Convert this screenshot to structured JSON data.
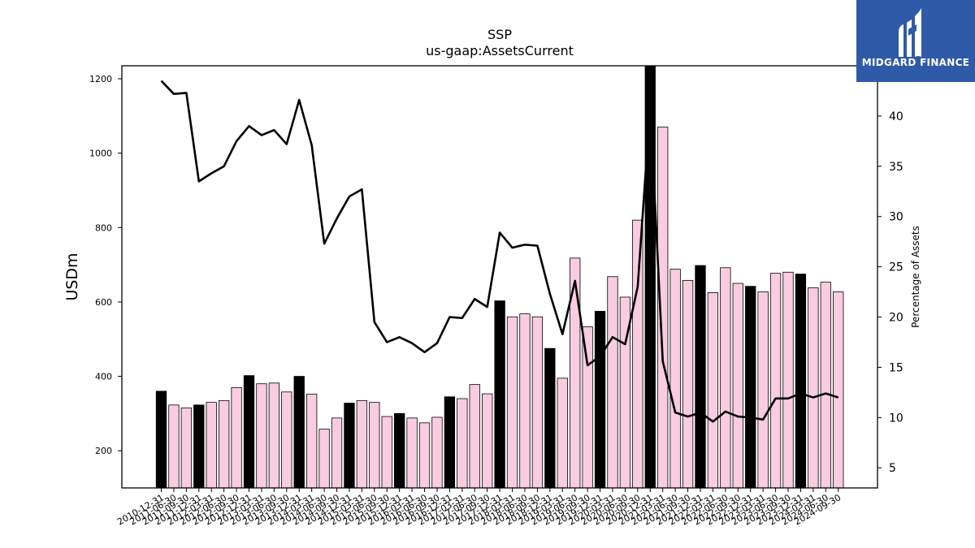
{
  "logo": {
    "text": "MIDGARD FINANCE",
    "color": "#2f5aa8"
  },
  "chart_data": {
    "type": "bar",
    "title": "SSP",
    "subtitle": "us-gaap:AssetsCurrent",
    "ylabel": "USDm",
    "y2label": "Percentage of Assets",
    "ylim": [
      100,
      1235
    ],
    "y2lim": [
      3,
      45
    ],
    "yticks": [
      200,
      400,
      600,
      800,
      1000,
      1200
    ],
    "y2ticks": [
      5,
      10,
      15,
      20,
      25,
      30,
      35,
      40
    ],
    "bar_colors": {
      "q4": "#000000",
      "other": "#f9cce1"
    },
    "line_color": "#000000",
    "categories": [
      "2010-12-31",
      "2011-06-30",
      "2011-09-30",
      "2011-12-31",
      "2012-03-31",
      "2012-06-30",
      "2012-09-30",
      "2012-12-31",
      "2013-03-31",
      "2013-06-30",
      "2013-09-30",
      "2013-12-31",
      "2014-03-31",
      "2014-06-30",
      "2014-09-30",
      "2014-12-31",
      "2015-03-31",
      "2015-06-30",
      "2015-09-30",
      "2015-12-31",
      "2016-03-31",
      "2016-06-30",
      "2016-09-30",
      "2016-12-31",
      "2017-03-31",
      "2017-06-30",
      "2017-09-30",
      "2017-12-31",
      "2018-03-31",
      "2018-06-30",
      "2018-09-30",
      "2018-12-31",
      "2019-03-31",
      "2019-06-30",
      "2019-09-30",
      "2019-12-31",
      "2020-03-31",
      "2020-06-30",
      "2020-09-30",
      "2020-12-31",
      "2021-03-31",
      "2021-06-30",
      "2021-09-30",
      "2021-12-31",
      "2022-03-31",
      "2022-06-30",
      "2022-09-30",
      "2022-12-31",
      "2023-03-31",
      "2023-06-30",
      "2023-09-30",
      "2023-12-31",
      "2024-03-31",
      "2024-06-30",
      "2024-09-30"
    ],
    "series": [
      {
        "type": "bar",
        "values": [
          360,
          323,
          315,
          323,
          330,
          335,
          370,
          402,
          380,
          382,
          358,
          400,
          352,
          258,
          288,
          328,
          335,
          330,
          292,
          300,
          288,
          275,
          290,
          345,
          340,
          378,
          353,
          603,
          560,
          568,
          560,
          475,
          395,
          718,
          533,
          575,
          668,
          613,
          820,
          1235,
          1070,
          688,
          658,
          698,
          625,
          692,
          650,
          642,
          627,
          677,
          680,
          675,
          638,
          653,
          627
        ]
      },
      {
        "type": "line",
        "axis": "y2",
        "values": [
          43.5,
          42.2,
          42.3,
          33.5,
          34.3,
          35,
          37.5,
          39,
          38.1,
          38.6,
          37.2,
          41.6,
          37.1,
          27.3,
          29.8,
          32,
          32.7,
          19.5,
          17.5,
          18,
          17.4,
          16.5,
          17.4,
          20,
          19.9,
          21.8,
          21,
          28.4,
          26.9,
          27.2,
          27.1,
          22.3,
          18.3,
          23.6,
          15.2,
          16.1,
          18,
          17.3,
          23,
          41,
          15.6,
          10.5,
          10.1,
          10.5,
          9.6,
          10.6,
          10.1,
          10,
          9.8,
          11.9,
          11.9,
          12.4,
          12,
          12.4,
          12
        ]
      }
    ],
    "legend": "none",
    "grid": false
  }
}
